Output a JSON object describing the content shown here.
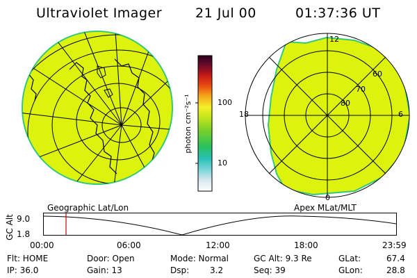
{
  "header": {
    "instrument": "Ultraviolet Imager",
    "date": "21 Jul 00",
    "time": "01:37:36 UT"
  },
  "colorbar": {
    "unit_label": "photon cm⁻²s⁻¹",
    "ticks": [
      "100",
      "10"
    ]
  },
  "geo_panel": {
    "label": "Geographic Lat/Lon",
    "icon": "globe-map-icon"
  },
  "polar_panel": {
    "label": "Apex MLat/MLT",
    "mlt_labels": [
      "12",
      "18",
      "6",
      "0"
    ],
    "mlat_labels": [
      "60",
      "70",
      "80"
    ]
  },
  "altitude_plot": {
    "axis_label": "GC Alt",
    "y_ticks": [
      "9.0",
      "1.8"
    ],
    "time_ticks": [
      "00:00",
      "06:00",
      "12:00",
      "18:00",
      "23:59"
    ],
    "current_marker_color": "#cc0000"
  },
  "status": {
    "flt": "Flt: HOME",
    "door": "Door: Open",
    "mode": "Mode: Normal",
    "gc_alt": "GC Alt: 9.3 Re",
    "glat_label": "GLat:",
    "glat_value": "67.4",
    "ip": "IP: 36.0",
    "gain": "Gain: 13",
    "dsp_label": "Dsp:",
    "dsp_value": "3.2",
    "seq": "Seq: 39",
    "glon_label": "GLon:",
    "glon_value": "28.8"
  },
  "colors": {
    "aurora_fill": "#ddf20c",
    "aurora_edge": "#34c87a",
    "grid_line": "#000000"
  }
}
